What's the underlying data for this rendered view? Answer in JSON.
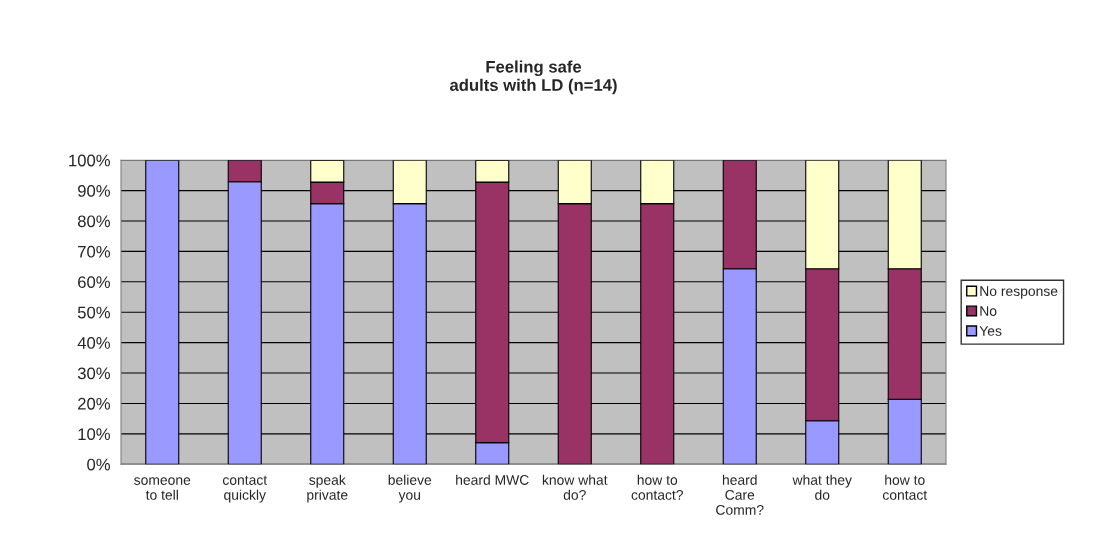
{
  "chart_data": {
    "type": "bar",
    "stacked": true,
    "title": "Feeling safe",
    "subtitle": "adults with LD (n=14)",
    "categories": [
      "someone to tell",
      "contact quickly",
      "speak private",
      "believe you",
      "heard MWC",
      "know what do?",
      "how to contact?",
      "heard Care Comm?",
      "what they do",
      "how to contact"
    ],
    "series": [
      {
        "name": "Yes",
        "color": "#9999ff",
        "values": [
          100,
          92.9,
          85.7,
          85.7,
          7.1,
          0,
          0,
          64.3,
          14.3,
          21.4
        ]
      },
      {
        "name": "No",
        "color": "#993366",
        "values": [
          0,
          7.1,
          7.1,
          0,
          85.7,
          85.7,
          85.7,
          35.7,
          50,
          42.9
        ]
      },
      {
        "name": "No response",
        "color": "#ffffcc",
        "values": [
          0,
          0,
          7.1,
          14.3,
          7.1,
          14.3,
          14.3,
          0,
          35.7,
          35.7
        ]
      }
    ],
    "ylim": [
      0,
      100
    ],
    "yticks": [
      {
        "value": 0,
        "label": "0%"
      },
      {
        "value": 10,
        "label": "10%"
      },
      {
        "value": 20,
        "label": "20%"
      },
      {
        "value": 30,
        "label": "30%"
      },
      {
        "value": 40,
        "label": "40%"
      },
      {
        "value": 50,
        "label": "50%"
      },
      {
        "value": 60,
        "label": "60%"
      },
      {
        "value": 70,
        "label": "70%"
      },
      {
        "value": 80,
        "label": "80%"
      },
      {
        "value": 90,
        "label": "90%"
      },
      {
        "value": 100,
        "label": "100%"
      }
    ],
    "grid": "y",
    "legend": "right"
  }
}
